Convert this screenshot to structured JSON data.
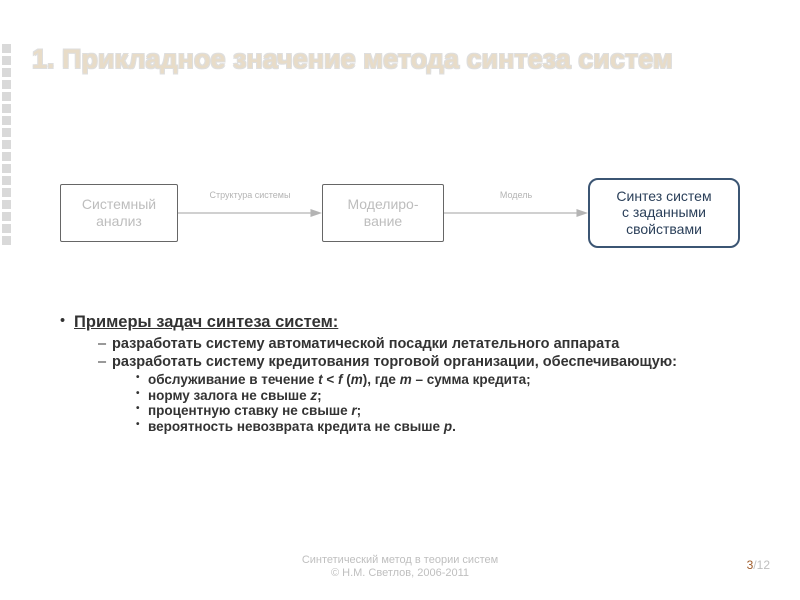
{
  "title": "1. Прикладное значение метода синтеза систем",
  "flow": {
    "boxes": [
      {
        "lines": [
          "Системный",
          "анализ"
        ],
        "kind": "a",
        "border": "#666666",
        "text": "#bdbdbd"
      },
      {
        "lines": [
          "Моделиро-",
          "вание"
        ],
        "kind": "b",
        "border": "#666666",
        "text": "#bdbdbd"
      },
      {
        "lines": [
          "Синтез систем",
          "с заданными",
          "свойствами"
        ],
        "kind": "c",
        "border": "#3b5573",
        "text": "#2a3f59"
      }
    ],
    "arrows": [
      {
        "label": "Структура системы",
        "color": "#b4b4b4"
      },
      {
        "label": "Модель",
        "color": "#b4b4b4"
      }
    ]
  },
  "bullets": {
    "heading": "Примеры задач синтеза систем:",
    "items": [
      {
        "text": "разработать систему автоматической посадки летательного аппарата"
      },
      {
        "text": "разработать систему кредитования торговой организации, обеспечивающую:",
        "sub": [
          "обслуживание в течение <span class=\"it\">t</span> &lt; <span class=\"it\">f</span> (<span class=\"it\">m</span>), где <span class=\"it\">m</span> – сумма кредита;",
          "норму залога не свыше <span class=\"it\">z</span>;",
          "процентную ставку не свыше <span class=\"it\">r</span>;",
          "вероятность невозврата кредита не свыше <span class=\"it\">p</span>."
        ]
      }
    ]
  },
  "footer": {
    "line1": "Синтетический метод в теории систем",
    "line2": "© Н.М. Светлов, 2006-2011"
  },
  "page": {
    "current": "3",
    "sep": "/",
    "total": "12"
  },
  "style": {
    "title_color": "#e8dcc8",
    "title_fontsize": 27,
    "body_fontsize": 14.5,
    "square_color": "#d9d9d9",
    "background": "#ffffff"
  }
}
